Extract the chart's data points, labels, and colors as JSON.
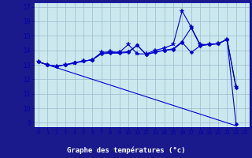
{
  "xlabel": "Graphe des températures (°c)",
  "xlim": [
    -0.5,
    23.5
  ],
  "ylim": [
    8.7,
    17.3
  ],
  "yticks": [
    9,
    10,
    11,
    12,
    13,
    14,
    15,
    16,
    17
  ],
  "xticks": [
    0,
    1,
    2,
    3,
    4,
    5,
    6,
    7,
    8,
    9,
    10,
    11,
    12,
    13,
    14,
    15,
    16,
    17,
    18,
    19,
    20,
    21,
    22,
    23
  ],
  "plot_bg": "#cce8ef",
  "fig_bg": "#1a1a8c",
  "grid_color": "#99bbcc",
  "line_color": "#0000cc",
  "xlabel_color": "#ffffff",
  "tick_color": "#0000aa",
  "series": {
    "line_diag": {
      "x": [
        0,
        22
      ],
      "y": [
        13.2,
        8.8
      ]
    },
    "line1": {
      "x": [
        0,
        1,
        2,
        3,
        4,
        5,
        6,
        7,
        8,
        9,
        10,
        11,
        12,
        13,
        14,
        15,
        16,
        17,
        18,
        19,
        20,
        21,
        22
      ],
      "y": [
        13.2,
        13.0,
        12.9,
        13.0,
        13.15,
        13.25,
        13.35,
        13.75,
        13.8,
        13.8,
        13.85,
        14.35,
        13.7,
        13.85,
        14.0,
        14.05,
        14.55,
        13.85,
        14.3,
        14.4,
        14.45,
        14.75,
        8.9
      ],
      "marker": "D",
      "markersize": 2.5
    },
    "line2": {
      "x": [
        0,
        1,
        2,
        3,
        4,
        5,
        6,
        7,
        8,
        9,
        10,
        11,
        12,
        13,
        14,
        15,
        16,
        17,
        18,
        19,
        20,
        21,
        22
      ],
      "y": [
        13.2,
        13.0,
        12.9,
        13.0,
        13.15,
        13.25,
        13.35,
        13.8,
        13.85,
        13.85,
        13.9,
        14.35,
        13.7,
        13.9,
        14.0,
        14.1,
        14.6,
        15.55,
        14.35,
        14.4,
        14.45,
        14.75,
        11.4
      ],
      "marker": "D",
      "markersize": 2.5
    },
    "line3": {
      "x": [
        0,
        1,
        2,
        3,
        4,
        5,
        6,
        7,
        8,
        9,
        10,
        11,
        12,
        13,
        14,
        15,
        16,
        17,
        18,
        19,
        20,
        21,
        22
      ],
      "y": [
        13.2,
        13.0,
        12.9,
        13.0,
        13.1,
        13.25,
        13.35,
        13.85,
        13.9,
        13.85,
        14.4,
        13.75,
        13.75,
        14.0,
        14.15,
        14.4,
        16.7,
        15.6,
        14.4,
        14.4,
        14.45,
        14.75,
        11.5
      ],
      "marker": "*",
      "markersize": 4.0
    }
  }
}
